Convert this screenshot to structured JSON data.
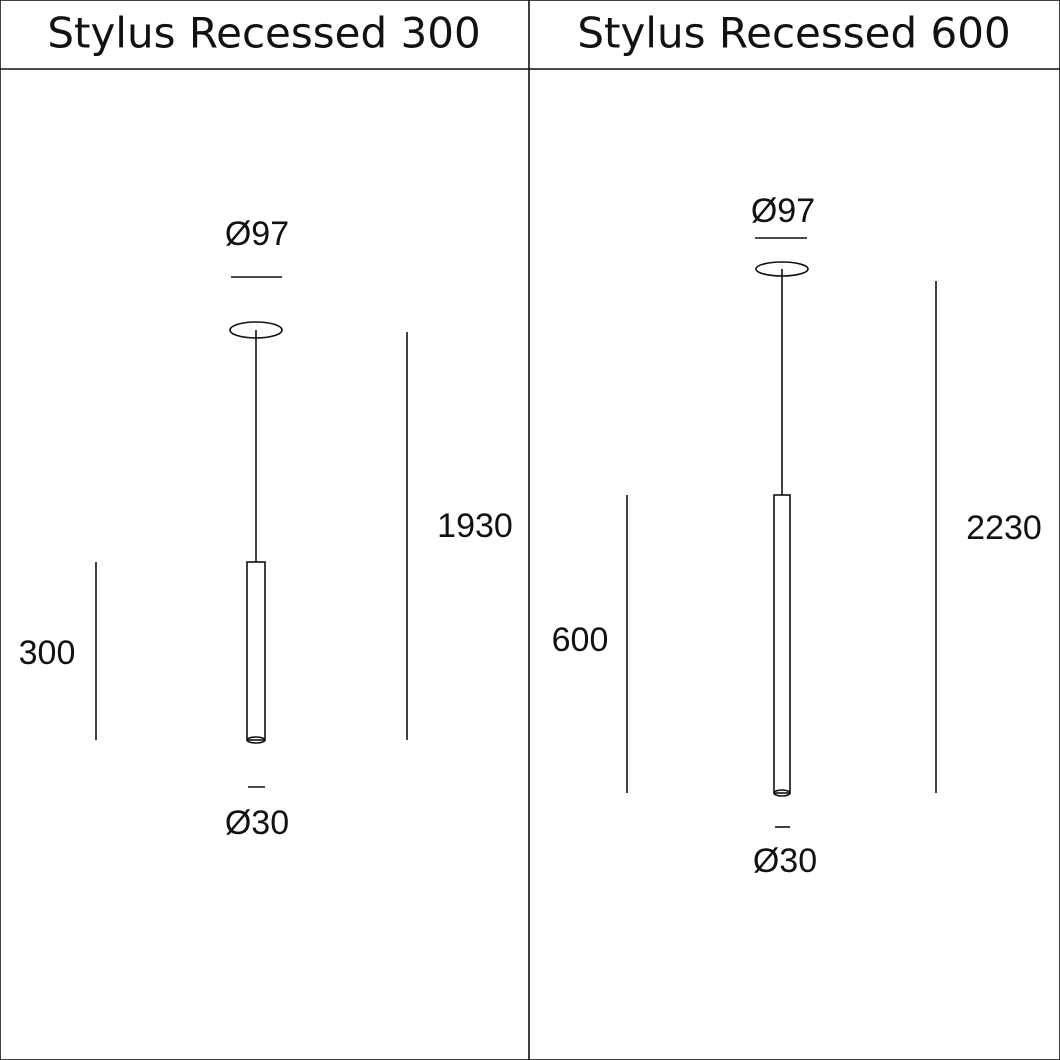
{
  "panels": [
    {
      "title": "Stylus Recessed 300",
      "top_diameter": "Ø97",
      "bottom_diameter": "Ø30",
      "body_length": "300",
      "total_height": "1930"
    },
    {
      "title": "Stylus Recessed 600",
      "top_diameter": "Ø97",
      "bottom_diameter": "Ø30",
      "body_length": "600",
      "total_height": "2230"
    }
  ]
}
